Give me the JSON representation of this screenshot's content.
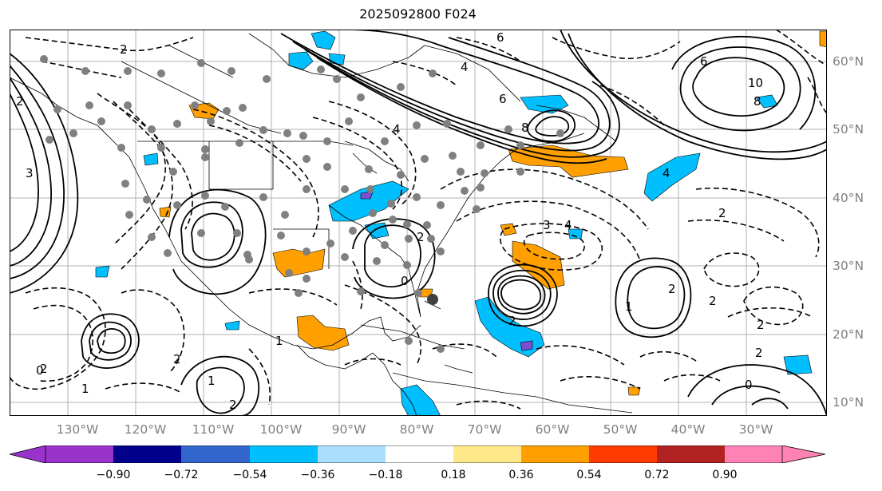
{
  "title": "2025092800 F024",
  "lon_labels": [
    "130°W",
    "120°W",
    "110°W",
    "100°W",
    "90°W",
    "80°W",
    "70°W",
    "60°W",
    "50°W",
    "40°W",
    "30°W"
  ],
  "lat_labels": [
    "60°N",
    "50°N",
    "40°N",
    "30°N",
    "20°N",
    "10°N"
  ],
  "colorbar": {
    "labels": [
      "−0.90",
      "−0.72",
      "−0.54",
      "−0.36",
      "−0.18",
      "0.18",
      "0.36",
      "0.54",
      "0.72",
      "0.90"
    ],
    "colors": [
      "#9933cc",
      "#00008b",
      "#3366cc",
      "#00bfff",
      "#aadfff",
      "#ffffff",
      "#ffe88a",
      "#ffa000",
      "#ff3a00",
      "#b22222",
      "#ff82b4"
    ]
  },
  "shade_colors": {
    "cyan": "#00bfff",
    "orange": "#ffa000",
    "purple": "#7a4fd0"
  },
  "contour_labels": [
    "6",
    "4",
    "2",
    "0",
    "2",
    "4",
    "6",
    "8",
    "10",
    "1",
    "3",
    "2",
    "3",
    "6",
    "8",
    "4",
    "2",
    "0",
    "2",
    "2",
    "1",
    "2",
    "4",
    "2",
    "2",
    "1",
    "2",
    "2",
    "0",
    "2",
    "1"
  ]
}
